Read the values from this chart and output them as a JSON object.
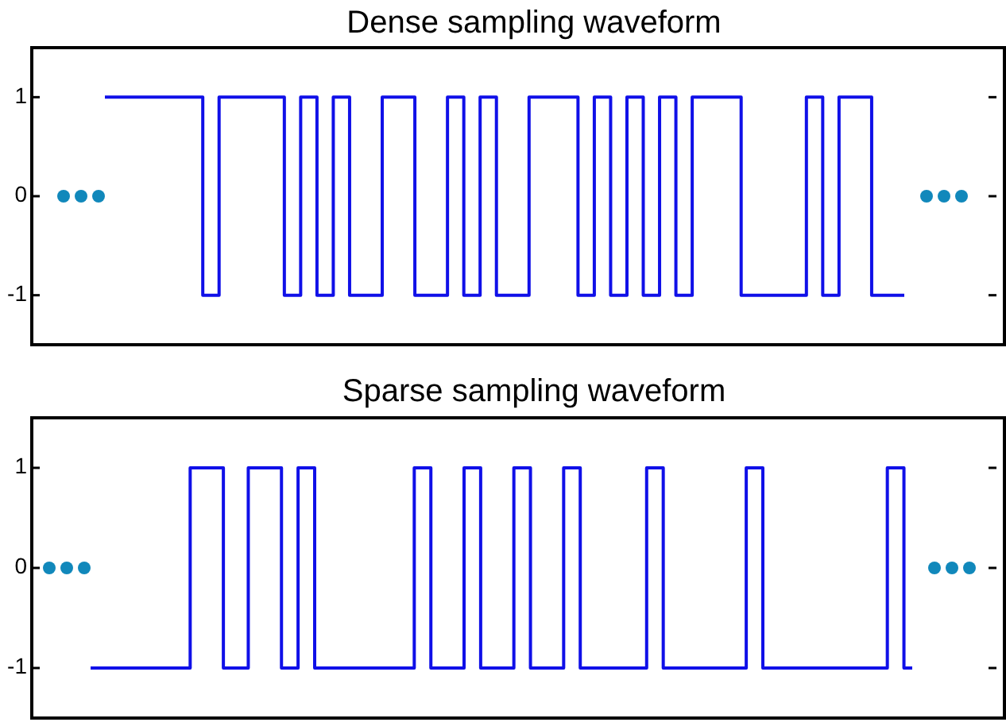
{
  "chart_data": [
    {
      "type": "step",
      "title": "Dense sampling waveform",
      "tick_labels": "y",
      "color": "#1010e8",
      "ylim": [
        -1.5,
        1.5
      ],
      "yticks": [
        -1,
        0,
        1
      ],
      "categories": [
        null,
        null,
        null,
        null,
        null,
        null,
        null,
        null,
        null,
        null,
        null,
        null,
        null,
        null,
        null,
        null,
        null,
        null,
        null,
        null,
        null,
        null,
        null,
        null,
        null,
        null,
        null,
        null,
        null,
        null,
        null,
        null,
        null,
        null,
        null,
        null,
        null,
        null,
        null,
        null,
        null,
        null,
        null,
        null,
        null,
        null,
        null,
        null,
        null,
        null
      ],
      "values": [
        1,
        1,
        1,
        1,
        1,
        1,
        -1,
        1,
        1,
        1,
        1,
        -1,
        1,
        -1,
        1,
        -1,
        -1,
        1,
        1,
        -1,
        -1,
        1,
        -1,
        1,
        -1,
        -1,
        1,
        1,
        1,
        -1,
        1,
        -1,
        1,
        -1,
        1,
        -1,
        1,
        1,
        1,
        -1,
        -1,
        -1,
        -1,
        1,
        -1,
        1,
        1,
        -1,
        -1,
        -1
      ]
    },
    {
      "type": "step",
      "title": "Sparse sampling waveform",
      "tick_labels": "y",
      "color": "#1010e8",
      "ylim": [
        -1.5,
        1.5
      ],
      "yticks": [
        -1,
        0,
        1
      ],
      "categories": [
        null,
        null,
        null,
        null,
        null,
        null,
        null,
        null,
        null,
        null,
        null,
        null,
        null,
        null,
        null,
        null,
        null,
        null,
        null,
        null,
        null,
        null,
        null,
        null,
        null,
        null,
        null,
        null,
        null,
        null,
        null,
        null,
        null,
        null,
        null,
        null,
        null,
        null,
        null,
        null,
        null,
        null,
        null,
        null,
        null,
        null,
        null,
        null,
        null,
        null,
        null,
        null,
        null,
        null,
        null,
        null,
        null,
        null,
        null,
        null,
        null,
        null,
        null,
        null,
        null,
        null,
        null,
        null,
        null,
        null,
        null,
        null,
        null,
        null,
        null,
        null,
        null,
        null,
        null,
        null,
        null,
        null,
        null,
        null,
        null,
        null,
        null,
        null,
        null,
        null,
        null,
        null,
        null,
        null,
        null,
        null,
        null,
        null,
        null,
        null
      ],
      "values": [
        -1,
        -1,
        -1,
        -1,
        -1,
        -1,
        -1,
        -1,
        -1,
        -1,
        -1,
        -1,
        1,
        1,
        1,
        1,
        -1,
        -1,
        -1,
        1,
        1,
        1,
        1,
        -1,
        -1,
        1,
        1,
        -1,
        -1,
        -1,
        -1,
        -1,
        -1,
        -1,
        -1,
        -1,
        -1,
        -1,
        -1,
        1,
        1,
        -1,
        -1,
        -1,
        -1,
        1,
        1,
        -1,
        -1,
        -1,
        -1,
        1,
        1,
        -1,
        -1,
        -1,
        -1,
        1,
        1,
        -1,
        -1,
        -1,
        -1,
        -1,
        -1,
        -1,
        -1,
        1,
        1,
        -1,
        -1,
        -1,
        -1,
        -1,
        -1,
        -1,
        -1,
        -1,
        -1,
        1,
        1,
        -1,
        -1,
        -1,
        -1,
        -1,
        -1,
        -1,
        -1,
        -1,
        -1,
        -1,
        -1,
        -1,
        -1,
        -1,
        1,
        1,
        -1,
        -1
      ]
    }
  ]
}
